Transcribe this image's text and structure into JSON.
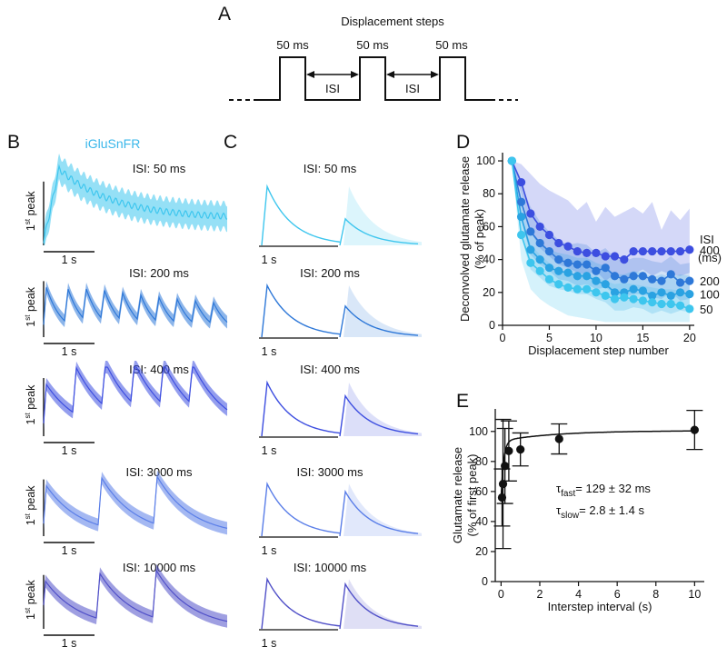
{
  "panels": {
    "A": {
      "label": "A",
      "title": "Displacement steps",
      "pulse_label": "50 ms",
      "interval_label": "ISI"
    },
    "B": {
      "label": "B",
      "sensor": "iGluSnFR",
      "ylabel_main": "1",
      "ylabel_sup": "st",
      "ylabel_rest": " peak",
      "scalebar": "1 s"
    },
    "C": {
      "label": "C",
      "scalebar": "1 s"
    },
    "D": {
      "label": "D"
    },
    "E": {
      "label": "E"
    }
  },
  "isi_labels": [
    "ISI: 50 ms",
    "ISI: 200 ms",
    "ISI: 400 ms",
    "ISI: 3000 ms",
    "ISI: 10000 ms"
  ],
  "colors": {
    "isi50": "#3ec6ee",
    "isi100": "#2aa2e2",
    "isi200": "#2e78d8",
    "isi400": "#3d4ee0",
    "isi3000": "#5a7ee8",
    "isi10000": "#5050c8",
    "sensor": "#3ab7ea"
  },
  "chart_data": [
    {
      "id": "D",
      "type": "line",
      "xlabel": "Displacement step number",
      "ylabel": "Deconvolved glutamate release",
      "ylabel2": "(% of peak)",
      "xlim": [
        0,
        20.5
      ],
      "ylim": [
        0,
        105
      ],
      "xticks": [
        0,
        5,
        10,
        15,
        20
      ],
      "yticks": [
        0,
        20,
        40,
        60,
        80,
        100
      ],
      "legend_title": "ISI",
      "legend_title2": "(ms)",
      "x": [
        1,
        2,
        3,
        4,
        5,
        6,
        7,
        8,
        9,
        10,
        11,
        12,
        13,
        14,
        15,
        16,
        17,
        18,
        19,
        20
      ],
      "series": [
        {
          "name": "400",
          "values": [
            100,
            87,
            68,
            60,
            55,
            50,
            48,
            45,
            44,
            44,
            42,
            42,
            40,
            45,
            45,
            45,
            45,
            45,
            45,
            46
          ],
          "band_upper": [
            100,
            98,
            92,
            86,
            82,
            79,
            76,
            70,
            75,
            63,
            72,
            66,
            69,
            72,
            68,
            75,
            58,
            70,
            64,
            71
          ],
          "band_lower": [
            100,
            80,
            57,
            47,
            42,
            37,
            35,
            32,
            31,
            33,
            27,
            31,
            26,
            31,
            34,
            30,
            33,
            31,
            30,
            32
          ]
        },
        {
          "name": "200",
          "values": [
            100,
            75,
            57,
            50,
            45,
            40,
            38,
            37,
            37,
            33,
            35,
            30,
            28,
            30,
            30,
            28,
            27,
            31,
            26,
            27
          ],
          "band_upper": [
            100,
            86,
            72,
            63,
            57,
            52,
            49,
            50,
            49,
            44,
            47,
            41,
            39,
            41,
            41,
            39,
            38,
            42,
            37,
            38
          ],
          "band_lower": [
            100,
            64,
            43,
            37,
            33,
            28,
            27,
            24,
            25,
            22,
            23,
            19,
            17,
            19,
            19,
            17,
            16,
            20,
            15,
            16
          ]
        },
        {
          "name": "100",
          "values": [
            100,
            66,
            46,
            40,
            35,
            33,
            32,
            30,
            30,
            27,
            25,
            20,
            20,
            22,
            21,
            18,
            20,
            18,
            20,
            19
          ],
          "band_upper": [
            100,
            78,
            58,
            51,
            46,
            44,
            43,
            41,
            41,
            38,
            36,
            31,
            31,
            33,
            32,
            29,
            31,
            29,
            31,
            30
          ],
          "band_lower": [
            100,
            54,
            34,
            29,
            24,
            22,
            21,
            19,
            19,
            16,
            14,
            9,
            9,
            11,
            10,
            7,
            9,
            7,
            9,
            8
          ]
        },
        {
          "name": "50",
          "values": [
            100,
            55,
            38,
            33,
            28,
            25,
            23,
            22,
            22,
            20,
            18,
            16,
            17,
            16,
            15,
            14,
            13,
            13,
            12,
            10
          ],
          "band_upper": [
            100,
            66,
            49,
            43,
            38,
            34,
            32,
            31,
            31,
            29,
            27,
            25,
            26,
            25,
            24,
            23,
            22,
            22,
            21,
            19
          ],
          "band_lower": [
            100,
            40,
            22,
            16,
            12,
            9,
            6,
            5,
            4,
            3,
            2,
            2,
            2,
            2,
            2,
            2,
            2,
            2,
            2,
            2
          ]
        }
      ]
    },
    {
      "id": "E",
      "type": "scatter",
      "xlabel": "Interstep interval (s)",
      "ylabel": "Glutamate release",
      "ylabel2": "(% of first peak)",
      "xlim": [
        -0.3,
        10.5
      ],
      "ylim": [
        0,
        115
      ],
      "xticks": [
        0,
        2,
        4,
        6,
        8,
        10
      ],
      "yticks": [
        0,
        20,
        40,
        60,
        80,
        100
      ],
      "points": [
        {
          "x": 0.05,
          "y": 56,
          "err": 19
        },
        {
          "x": 0.1,
          "y": 65,
          "err": 43
        },
        {
          "x": 0.2,
          "y": 77,
          "err": 25
        },
        {
          "x": 0.4,
          "y": 87,
          "err": 20
        },
        {
          "x": 1,
          "y": 88,
          "err": 11
        },
        {
          "x": 3,
          "y": 95,
          "err": 10
        },
        {
          "x": 10,
          "y": 101,
          "err": 13
        }
      ],
      "fit_y0": 55,
      "fit_max": 100.5,
      "fit_tau_fast": 0.129,
      "fit_tau_slow": 2.8,
      "fit_fast_fraction": 0.85,
      "tau_fast": {
        "symbol": "τ",
        "sub": "fast",
        "text": "= 129 ± 32 ms"
      },
      "tau_slow": {
        "symbol": "τ",
        "sub": "slow",
        "text": "= 2.8 ± 1.4 s"
      }
    }
  ]
}
